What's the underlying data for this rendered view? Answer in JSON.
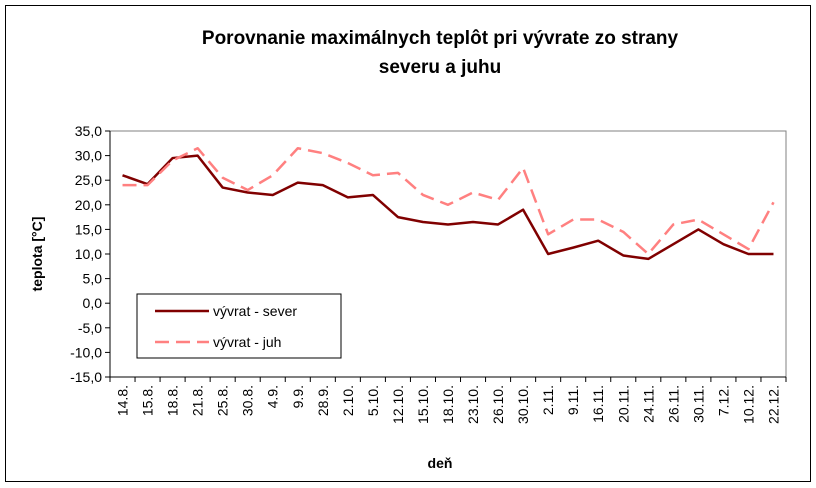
{
  "chart_data": {
    "type": "line",
    "title": [
      "Porovnanie maximálnych teplôt pri vývrate zo strany",
      "severu a juhu"
    ],
    "x_label": "deň",
    "y_label": "teplota [°C]",
    "categories": [
      "14.8.",
      "15.8.",
      "18.8.",
      "21.8.",
      "25.8.",
      "30.8.",
      "4.9.",
      "9.9.",
      "28.9.",
      "2.10.",
      "5.10.",
      "12.10.",
      "15.10.",
      "18.10.",
      "23.10.",
      "26.10.",
      "30.10.",
      "2.11.",
      "9.11.",
      "16.11.",
      "20.11.",
      "24.11.",
      "26.11.",
      "30.11.",
      "7.12.",
      "10.12.",
      "22.12."
    ],
    "series": [
      {
        "name": "vývrat - sever",
        "color": "#800000",
        "dash": false,
        "values": [
          26,
          24.2,
          29.5,
          30,
          23.5,
          22.5,
          22,
          24.5,
          24,
          21.5,
          22,
          17.5,
          16.5,
          16,
          16.5,
          16,
          19,
          10,
          11.3,
          12.7,
          9.7,
          9,
          12,
          15,
          12,
          10,
          10
        ]
      },
      {
        "name": "vývrat - juh",
        "color": "#ff8080",
        "dash": true,
        "values": [
          24,
          24,
          29,
          31.5,
          25.5,
          23,
          26,
          31.5,
          30.5,
          28.5,
          26,
          26.5,
          22,
          20,
          22.5,
          21,
          27.5,
          14,
          17,
          17,
          14.5,
          10,
          16,
          17,
          14,
          11,
          20.5
        ]
      }
    ],
    "ylim": [
      -15,
      35
    ],
    "yticks": [
      {
        "value": -15,
        "label": "-15,0"
      },
      {
        "value": -10,
        "label": "-10,0"
      },
      {
        "value": -5,
        "label": "-5,0"
      },
      {
        "value": 0,
        "label": "0,0"
      },
      {
        "value": 5,
        "label": "5,0"
      },
      {
        "value": 10,
        "label": "10,0"
      },
      {
        "value": 15,
        "label": "15,0"
      },
      {
        "value": 20,
        "label": "20,0"
      },
      {
        "value": 25,
        "label": "25,0"
      },
      {
        "value": 30,
        "label": "30,0"
      },
      {
        "value": 35,
        "label": "35,0"
      }
    ],
    "legend": "lower-left"
  }
}
